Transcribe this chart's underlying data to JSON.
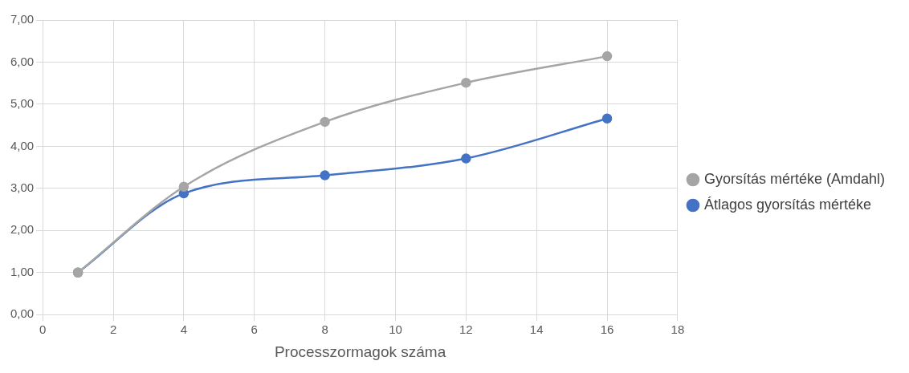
{
  "chart_data": {
    "type": "line",
    "xlabel": "Processzormagok száma",
    "x": [
      1,
      4,
      8,
      12,
      16
    ],
    "series": [
      {
        "name": "Átlagos gyorsítás mértéke",
        "color": "#4472c4",
        "values": [
          1,
          2.88,
          3.31,
          3.71,
          4.66
        ]
      },
      {
        "name": "Gyorsítás mértéke (Amdahl)",
        "color": "#a5a5a5",
        "values": [
          1,
          3.04,
          4.58,
          5.51,
          6.14
        ]
      }
    ],
    "xlim": [
      0,
      18
    ],
    "xticks": [
      0,
      2,
      4,
      6,
      8,
      10,
      12,
      14,
      16,
      18
    ],
    "ylim": [
      0,
      7
    ],
    "yticks": [
      {
        "value": 0,
        "label": "0,00"
      },
      {
        "value": 1,
        "label": "1,00"
      },
      {
        "value": 2,
        "label": "2,00"
      },
      {
        "value": 3,
        "label": "3,00"
      },
      {
        "value": 4,
        "label": "4,00"
      },
      {
        "value": 5,
        "label": "5,00"
      },
      {
        "value": 6,
        "label": "6,00"
      },
      {
        "value": 7,
        "label": "7,00"
      }
    ],
    "grid": true,
    "legend": "right",
    "marker": "circle",
    "line_style": "solid"
  }
}
